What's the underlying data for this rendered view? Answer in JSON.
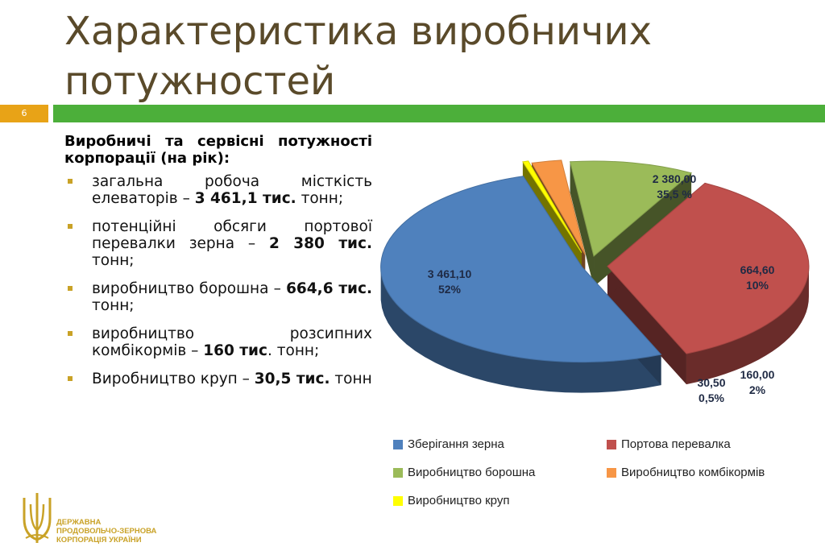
{
  "slide": {
    "title_line1": "Характеристика виробничих",
    "title_line2": "потужностей",
    "number": "6"
  },
  "text": {
    "intro": "Виробничі та сервісні потужності корпорації (на рік):",
    "items": [
      {
        "pre": "загальна робоча місткість елеваторів – ",
        "bold": "3 461,1 тис.",
        "post": " тонн;"
      },
      {
        "pre": "потенційні обсяги портової перевалки зерна – ",
        "bold": "2 380 тис.",
        "post": " тонн;"
      },
      {
        "pre": "виробництво борошна – ",
        "bold": "664,6 тис.",
        "post": " тонн;"
      },
      {
        "pre": "виробництво розсипних комбікормів – ",
        "bold": "160 тис",
        "post": ". тонн;"
      },
      {
        "pre": "Виробництво круп – ",
        "bold": "30,5 тис.",
        "post": " тонн"
      }
    ]
  },
  "logo": {
    "line1": "ДЕРЖАВНА",
    "line2": "ПРОДОВОЛЬЧО-ЗЕРНОВА",
    "line3": "КОРПОРАЦІЯ УКРАЇНИ",
    "icon": "wheat-trident-icon"
  },
  "chart_data": {
    "type": "pie",
    "title": "",
    "style": "3d-exploded",
    "legend_position": "bottom",
    "slices": [
      {
        "name": "Зберігання зерна",
        "value": 3461.1,
        "value_label": "3 461,10",
        "percent_label": "52%",
        "color": "#4f81bd"
      },
      {
        "name": "Портова перевалка",
        "value": 2380.0,
        "value_label": "2 380,00",
        "percent_label": "35,5 %",
        "color": "#c0504d"
      },
      {
        "name": "Виробництво борошна",
        "value": 664.6,
        "value_label": "664,60",
        "percent_label": "10%",
        "color": "#9bbb59"
      },
      {
        "name": "Виробництво комбікормів",
        "value": 160.0,
        "value_label": "160,00",
        "percent_label": "2%",
        "color": "#f79646"
      },
      {
        "name": "Виробництво круп",
        "value": 30.5,
        "value_label": "30,50",
        "percent_label": "0,5%",
        "color": "#ffff00"
      }
    ]
  }
}
